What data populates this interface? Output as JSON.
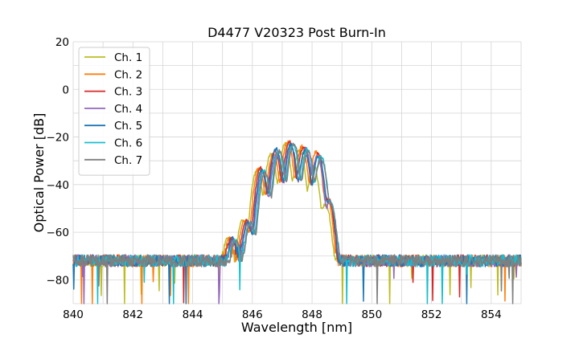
{
  "chart_data": {
    "type": "line",
    "title": "D4477 V20323 Post Burn-In",
    "xlabel": "Wavelength [nm]",
    "ylabel": "Optical Power [dB]",
    "xlim": [
      840,
      855
    ],
    "ylim": [
      -90,
      20
    ],
    "xticks": [
      840,
      842,
      844,
      846,
      848,
      850,
      852,
      854
    ],
    "yticks": [
      -80,
      -60,
      -40,
      -20,
      0,
      20
    ],
    "grid": true,
    "legend_position": "top-left",
    "noise_floor": -72,
    "series": [
      {
        "name": "Ch. 1",
        "color": "#bcbd22",
        "peaks": [
          [
            845.18,
            -63
          ],
          [
            845.68,
            -55
          ],
          [
            846.15,
            -34
          ],
          [
            846.62,
            -27
          ],
          [
            847.1,
            -23
          ],
          [
            847.58,
            -25
          ],
          [
            848.05,
            -32
          ],
          [
            848.45,
            -48
          ]
        ]
      },
      {
        "name": "Ch. 2",
        "color": "#ff7f0e",
        "peaks": [
          [
            845.24,
            -63
          ],
          [
            845.74,
            -55
          ],
          [
            846.22,
            -33
          ],
          [
            846.7,
            -27
          ],
          [
            847.18,
            -22
          ],
          [
            847.66,
            -24
          ],
          [
            848.14,
            -26
          ],
          [
            848.5,
            -46
          ]
        ]
      },
      {
        "name": "Ch. 3",
        "color": "#d62728",
        "peaks": [
          [
            845.3,
            -63
          ],
          [
            845.8,
            -55
          ],
          [
            846.28,
            -33
          ],
          [
            846.76,
            -26
          ],
          [
            847.24,
            -22
          ],
          [
            847.72,
            -24
          ],
          [
            848.2,
            -27
          ],
          [
            848.55,
            -46
          ]
        ]
      },
      {
        "name": "Ch. 4",
        "color": "#9467bd",
        "peaks": [
          [
            845.36,
            -64
          ],
          [
            845.86,
            -56
          ],
          [
            846.34,
            -35
          ],
          [
            846.82,
            -27
          ],
          [
            847.3,
            -24
          ],
          [
            847.78,
            -25
          ],
          [
            848.18,
            -28
          ],
          [
            848.6,
            -47
          ]
        ]
      },
      {
        "name": "Ch. 5",
        "color": "#1f77b4",
        "peaks": [
          [
            845.34,
            -63
          ],
          [
            845.84,
            -56
          ],
          [
            846.32,
            -34
          ],
          [
            846.8,
            -25
          ],
          [
            847.28,
            -23
          ],
          [
            847.76,
            -26
          ],
          [
            848.22,
            -28
          ],
          [
            848.58,
            -47
          ]
        ]
      },
      {
        "name": "Ch. 6",
        "color": "#17becf",
        "peaks": [
          [
            845.42,
            -64
          ],
          [
            845.92,
            -56
          ],
          [
            846.4,
            -34
          ],
          [
            846.88,
            -26
          ],
          [
            847.36,
            -23
          ],
          [
            847.84,
            -25
          ],
          [
            848.3,
            -28
          ],
          [
            848.62,
            -48
          ]
        ]
      },
      {
        "name": "Ch. 7",
        "color": "#7f7f7f",
        "peaks": [
          [
            845.45,
            -64
          ],
          [
            845.95,
            -56
          ],
          [
            846.43,
            -35
          ],
          [
            846.91,
            -26
          ],
          [
            847.39,
            -23
          ],
          [
            847.87,
            -26
          ],
          [
            848.3,
            -29
          ],
          [
            848.62,
            -48
          ]
        ]
      }
    ]
  }
}
